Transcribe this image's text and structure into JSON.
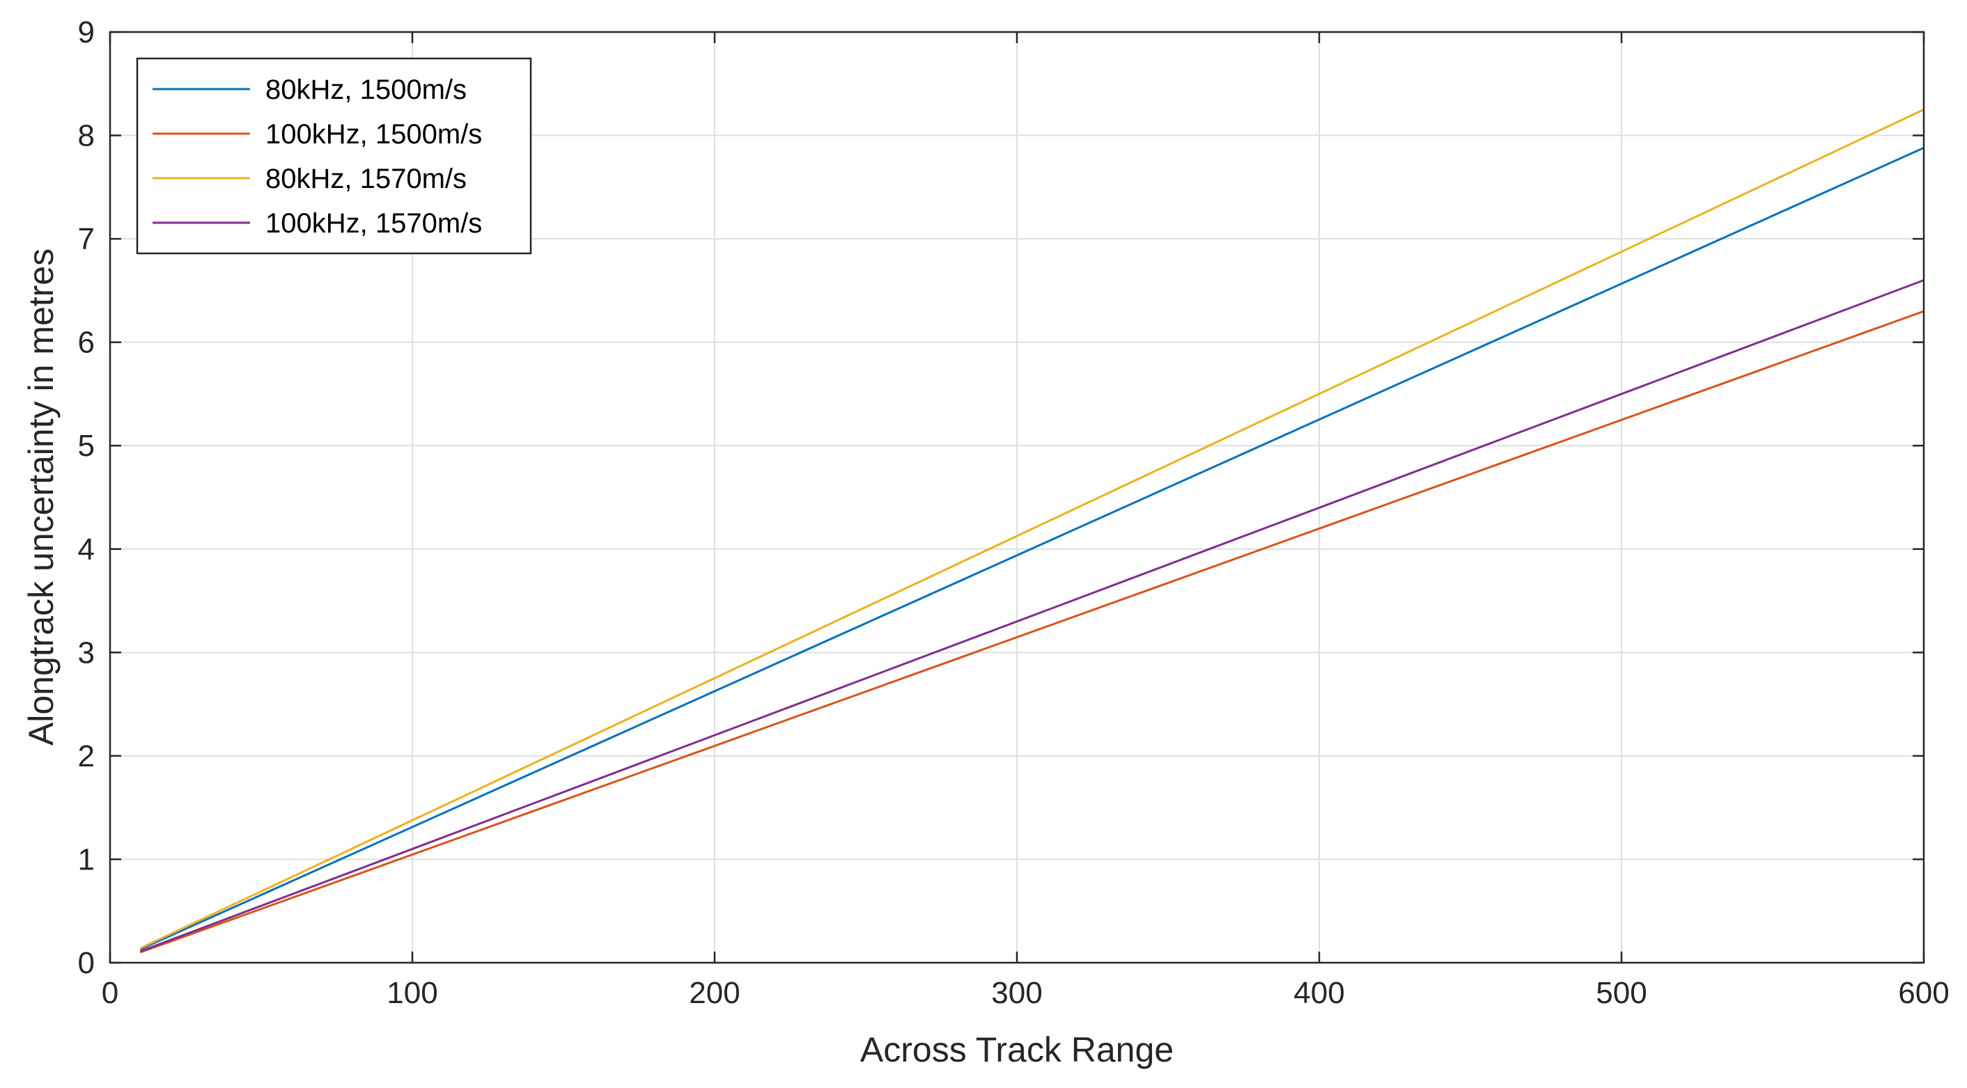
{
  "chart_data": {
    "type": "line",
    "title": "",
    "xlabel": "Across Track Range",
    "ylabel": "Alongtrack uncertainty in metres",
    "xlim": [
      0,
      600
    ],
    "ylim": [
      0,
      9
    ],
    "xticks": [
      0,
      100,
      200,
      300,
      400,
      500,
      600
    ],
    "yticks": [
      0,
      1,
      2,
      3,
      4,
      5,
      6,
      7,
      8,
      9
    ],
    "xtick_labels": [
      "0",
      "100",
      "200",
      "300",
      "400",
      "500",
      "600"
    ],
    "ytick_labels": [
      "0",
      "1",
      "2",
      "3",
      "4",
      "5",
      "6",
      "7",
      "8",
      "9"
    ],
    "grid": true,
    "legend_position": "top-left",
    "x": [
      10,
      600
    ],
    "series": [
      {
        "name": "80kHz, 1500m/s",
        "color": "#0072BD",
        "values": [
          0.13,
          7.88
        ]
      },
      {
        "name": "100kHz, 1500m/s",
        "color": "#D95319",
        "values": [
          0.1,
          6.3
        ]
      },
      {
        "name": "80kHz, 1570m/s",
        "color": "#EDB120",
        "values": [
          0.14,
          8.25
        ]
      },
      {
        "name": "100kHz, 1570m/s",
        "color": "#7E2F8E",
        "values": [
          0.11,
          6.6
        ]
      }
    ]
  }
}
